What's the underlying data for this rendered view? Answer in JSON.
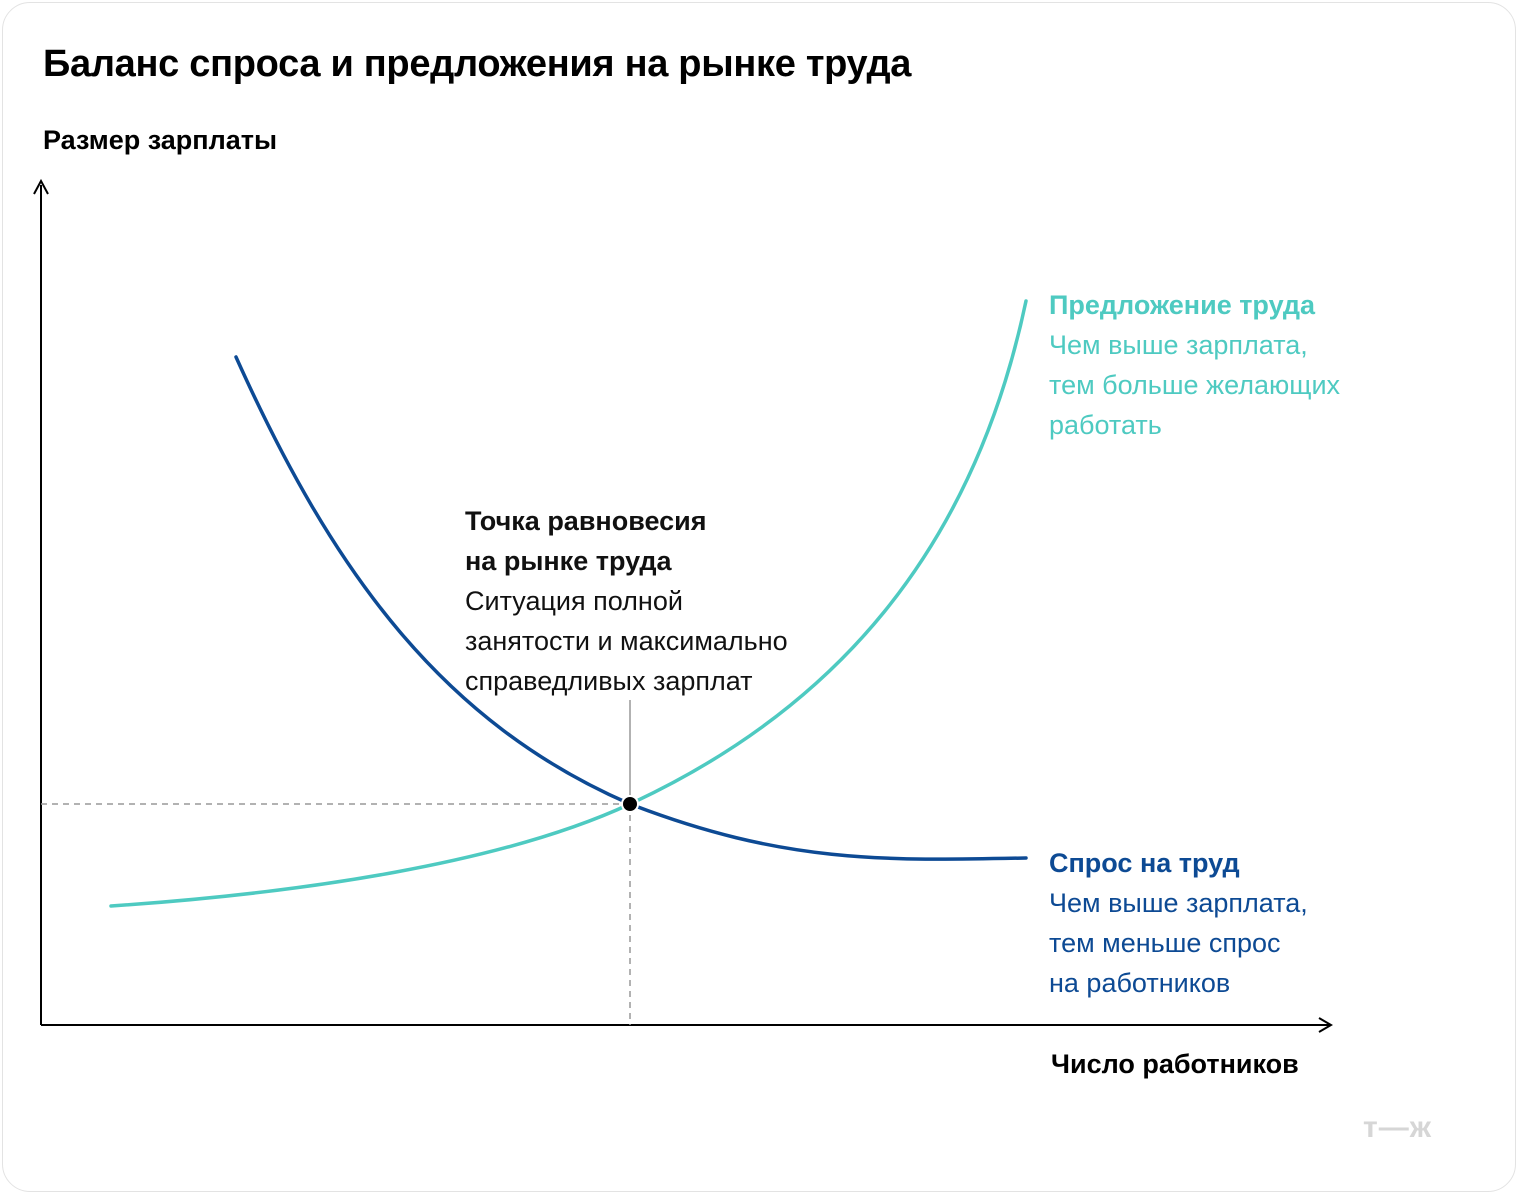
{
  "title": "Баланс спроса и предложения на рынке труда",
  "axes": {
    "y_label": "Размер зарплаты",
    "x_label": "Число работников"
  },
  "supply": {
    "heading": "Предложение труда",
    "lines": [
      "Чем выше зарплата,",
      "тем больше желающих",
      "работать"
    ],
    "color": "#4ecac1"
  },
  "demand": {
    "heading": "Спрос на труд",
    "lines": [
      "Чем выше зарплата,",
      "тем меньше спрос",
      "на работников"
    ],
    "color": "#0d4a94"
  },
  "equilibrium": {
    "heading_lines": [
      "Точка равновесия",
      "на рынке труда"
    ],
    "lines": [
      "Ситуация полной",
      "занятости и максимально",
      "справедливых зарплат"
    ]
  },
  "logo_text": "т—ж"
}
